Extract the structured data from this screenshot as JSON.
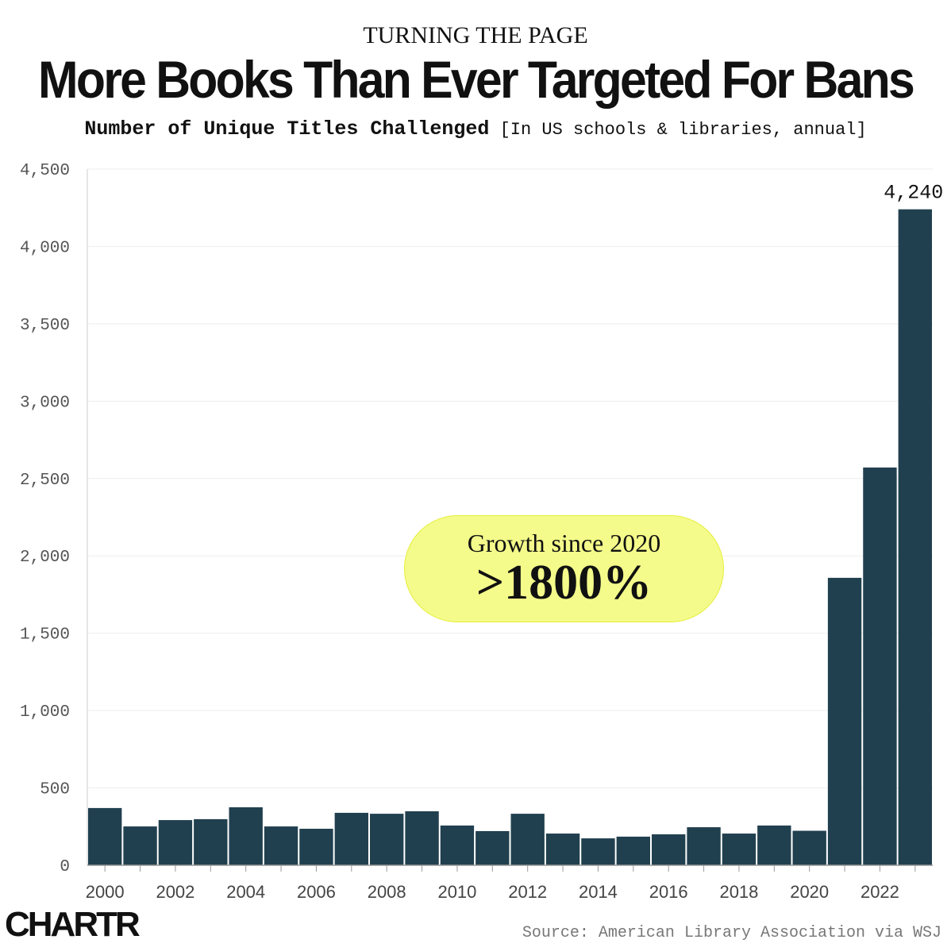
{
  "header": {
    "kicker": "TURNING THE PAGE",
    "title": "More Books Than Ever Targeted For Bans",
    "subtitle_bold": "Number of Unique Titles Challenged",
    "subtitle_note": "[In US schools & libraries, annual]"
  },
  "callout": {
    "line1": "Growth since 2020",
    "line2": ">1800%"
  },
  "footer": {
    "logo": "CHARTR",
    "source": "Source: American Library Association via WSJ"
  },
  "colors": {
    "bar": "#21404f",
    "callout": "#f4fb8a"
  },
  "chart_data": {
    "type": "bar",
    "title": "More Books Than Ever Targeted For Bans",
    "xlabel": "",
    "ylabel": "Number of Unique Titles Challenged",
    "ylim": [
      0,
      4500
    ],
    "yticks": [
      0,
      500,
      1000,
      1500,
      2000,
      2500,
      3000,
      3500,
      4000,
      4500
    ],
    "ytick_labels": [
      "0",
      "500",
      "1,000",
      "1,500",
      "2,000",
      "2,500",
      "3,000",
      "3,500",
      "4,000",
      "4,500"
    ],
    "categories": [
      2000,
      2001,
      2002,
      2003,
      2004,
      2005,
      2006,
      2007,
      2008,
      2009,
      2010,
      2011,
      2012,
      2013,
      2014,
      2015,
      2016,
      2017,
      2018,
      2019,
      2020,
      2021,
      2022,
      2023
    ],
    "xtick_labels": [
      "2000",
      "2002",
      "2004",
      "2006",
      "2008",
      "2010",
      "2012",
      "2014",
      "2016",
      "2018",
      "2020",
      "2022"
    ],
    "values": [
      370,
      251,
      292,
      298,
      375,
      251,
      236,
      339,
      333,
      349,
      257,
      221,
      333,
      205,
      174,
      185,
      200,
      246,
      205,
      257,
      223,
      1858,
      2571,
      4240
    ],
    "data_labels": [
      {
        "category": 2023,
        "text": "4,240"
      }
    ],
    "grid": true
  }
}
